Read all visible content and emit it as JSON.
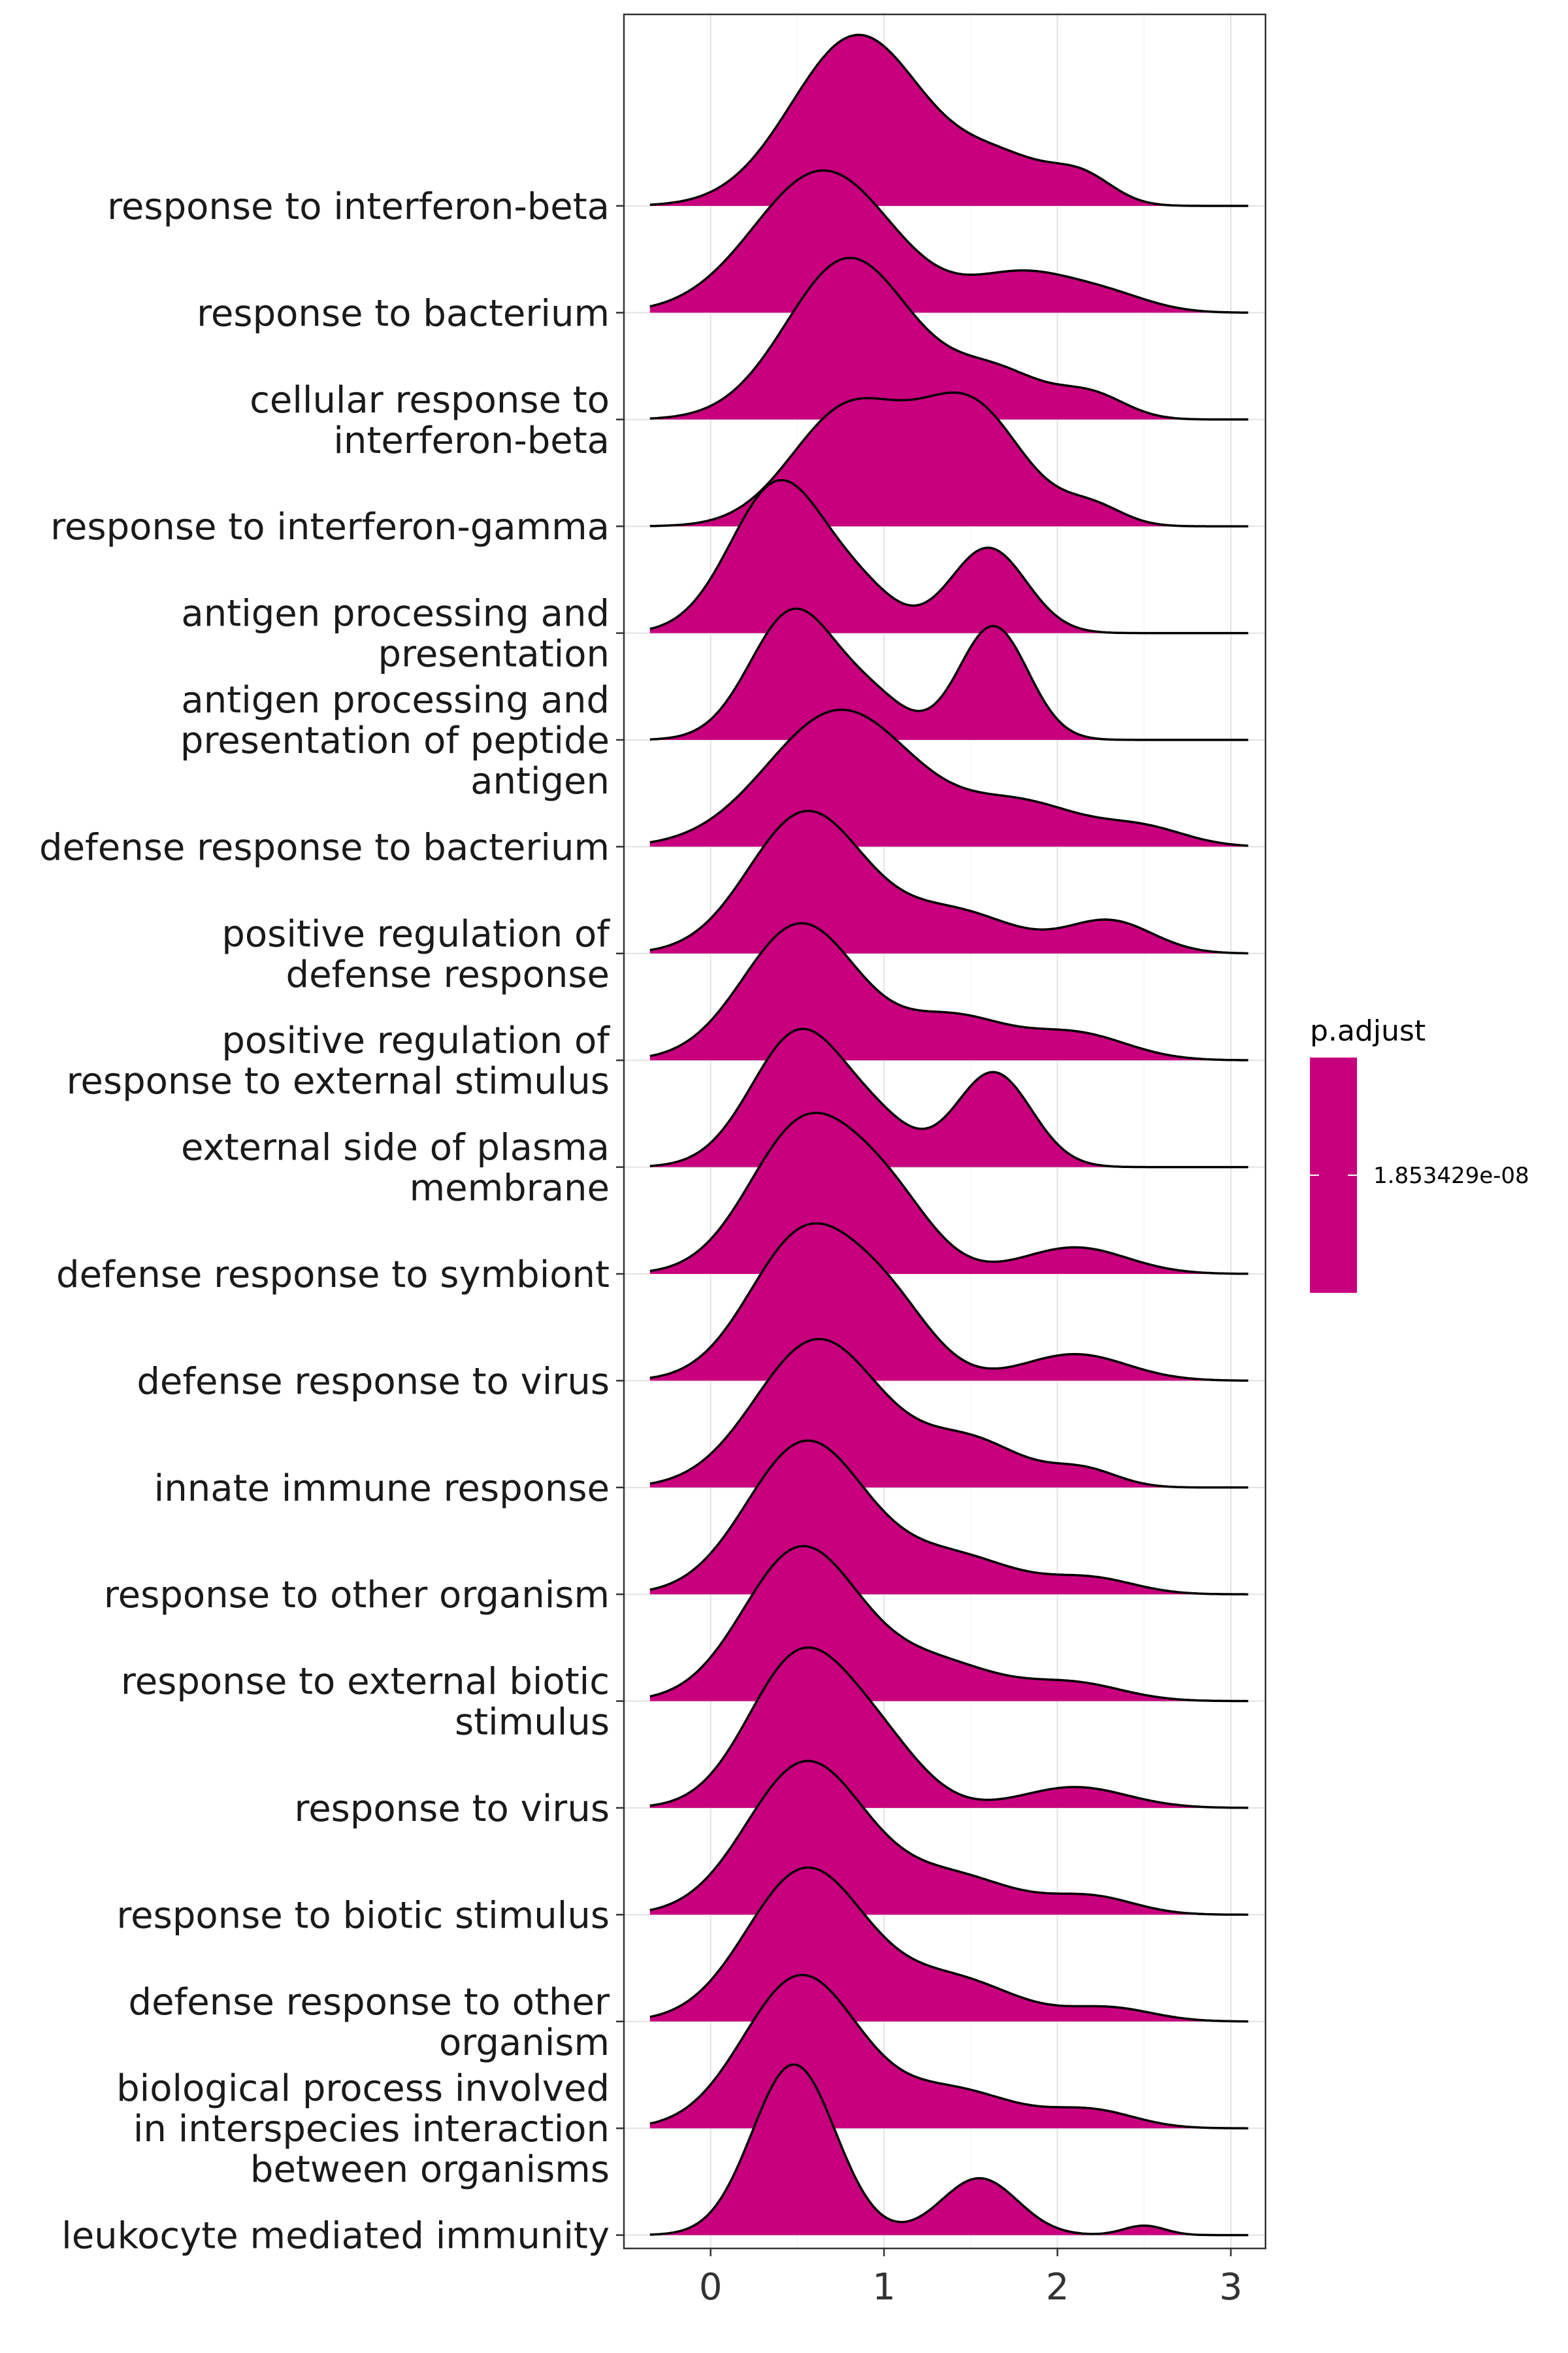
{
  "chart_data": {
    "type": "ridgeline",
    "fill_color": "#C8007E",
    "outline_color": "#000000",
    "xlim": [
      -0.5,
      3.2
    ],
    "x_ticks": [
      0,
      1,
      2,
      3
    ],
    "x_tick_labels": [
      "0",
      "1",
      "2",
      "3"
    ],
    "grid": true,
    "legend": {
      "title": "p.adjust",
      "placement": "right",
      "value_label": "1.853429e-08"
    },
    "categories": [
      {
        "label": [
          "response to interferon-beta"
        ],
        "peaks": [
          [
            0.85,
            0.9,
            0.38
          ],
          [
            1.7,
            0.22,
            0.28
          ],
          [
            2.15,
            0.13,
            0.18
          ]
        ]
      },
      {
        "label": [
          "response to bacterium"
        ],
        "peaks": [
          [
            0.65,
            0.75,
            0.4
          ],
          [
            1.8,
            0.2,
            0.3
          ],
          [
            2.3,
            0.08,
            0.25
          ]
        ]
      },
      {
        "label": [
          "cellular response to",
          "interferon-beta"
        ],
        "peaks": [
          [
            0.8,
            0.85,
            0.36
          ],
          [
            1.65,
            0.24,
            0.28
          ],
          [
            2.2,
            0.12,
            0.2
          ]
        ]
      },
      {
        "label": [
          "response to interferon-gamma"
        ],
        "peaks": [
          [
            0.8,
            0.62,
            0.33
          ],
          [
            1.5,
            0.62,
            0.3
          ],
          [
            2.2,
            0.1,
            0.18
          ]
        ]
      },
      {
        "label": [
          "antigen processing and",
          "presentation"
        ],
        "peaks": [
          [
            0.4,
            0.8,
            0.28
          ],
          [
            1.6,
            0.45,
            0.22
          ],
          [
            0.9,
            0.15,
            0.2
          ]
        ]
      },
      {
        "label": [
          "antigen processing and",
          "presentation of peptide",
          "antigen"
        ],
        "peaks": [
          [
            0.48,
            0.68,
            0.25
          ],
          [
            1.63,
            0.6,
            0.2
          ],
          [
            0.95,
            0.18,
            0.2
          ]
        ]
      },
      {
        "label": [
          "defense response to bacterium"
        ],
        "peaks": [
          [
            0.75,
            0.72,
            0.42
          ],
          [
            1.8,
            0.22,
            0.35
          ],
          [
            2.5,
            0.09,
            0.25
          ]
        ]
      },
      {
        "label": [
          "positive regulation of",
          "defense response"
        ],
        "peaks": [
          [
            0.55,
            0.74,
            0.33
          ],
          [
            1.4,
            0.22,
            0.35
          ],
          [
            2.3,
            0.17,
            0.25
          ]
        ]
      },
      {
        "label": [
          "positive regulation of",
          "response to external stimulus"
        ],
        "peaks": [
          [
            0.52,
            0.72,
            0.33
          ],
          [
            1.4,
            0.22,
            0.3
          ],
          [
            2.1,
            0.14,
            0.3
          ]
        ]
      },
      {
        "label": [
          "external side of plasma",
          "membrane"
        ],
        "peaks": [
          [
            0.52,
            0.72,
            0.28
          ],
          [
            1.63,
            0.5,
            0.22
          ],
          [
            1.0,
            0.15,
            0.2
          ]
        ]
      },
      {
        "label": [
          "defense response to symbiont"
        ],
        "peaks": [
          [
            0.55,
            0.8,
            0.32
          ],
          [
            1.05,
            0.3,
            0.25
          ],
          [
            2.1,
            0.14,
            0.3
          ]
        ]
      },
      {
        "label": [
          "defense response to virus"
        ],
        "peaks": [
          [
            0.55,
            0.78,
            0.32
          ],
          [
            1.05,
            0.3,
            0.25
          ],
          [
            2.1,
            0.14,
            0.3
          ]
        ]
      },
      {
        "label": [
          "innate immune response"
        ],
        "peaks": [
          [
            0.62,
            0.78,
            0.36
          ],
          [
            1.5,
            0.24,
            0.3
          ],
          [
            2.15,
            0.09,
            0.2
          ]
        ]
      },
      {
        "label": [
          "response to other organism"
        ],
        "peaks": [
          [
            0.55,
            0.8,
            0.34
          ],
          [
            1.4,
            0.2,
            0.35
          ],
          [
            2.2,
            0.08,
            0.25
          ]
        ]
      },
      {
        "label": [
          "response to external biotic",
          "stimulus"
        ],
        "peaks": [
          [
            0.52,
            0.8,
            0.33
          ],
          [
            1.3,
            0.2,
            0.35
          ],
          [
            2.1,
            0.09,
            0.28
          ]
        ]
      },
      {
        "label": [
          "response to virus"
        ],
        "peaks": [
          [
            0.52,
            0.8,
            0.3
          ],
          [
            1.0,
            0.25,
            0.25
          ],
          [
            2.1,
            0.11,
            0.3
          ]
        ]
      },
      {
        "label": [
          "response to biotic stimulus"
        ],
        "peaks": [
          [
            0.55,
            0.8,
            0.34
          ],
          [
            1.4,
            0.2,
            0.35
          ],
          [
            2.2,
            0.09,
            0.25
          ]
        ]
      },
      {
        "label": [
          "defense response to other",
          "organism"
        ],
        "peaks": [
          [
            0.55,
            0.8,
            0.34
          ],
          [
            1.4,
            0.22,
            0.35
          ],
          [
            2.3,
            0.07,
            0.25
          ]
        ]
      },
      {
        "label": [
          "biological process involved",
          "in interspecies interaction",
          "between organisms"
        ],
        "peaks": [
          [
            0.52,
            0.8,
            0.33
          ],
          [
            1.4,
            0.2,
            0.35
          ],
          [
            2.2,
            0.09,
            0.25
          ]
        ]
      },
      {
        "label": [
          "leukocyte mediated immunity"
        ],
        "peaks": [
          [
            0.48,
            0.9,
            0.24
          ],
          [
            1.55,
            0.3,
            0.22
          ],
          [
            2.5,
            0.05,
            0.12
          ]
        ]
      }
    ]
  }
}
